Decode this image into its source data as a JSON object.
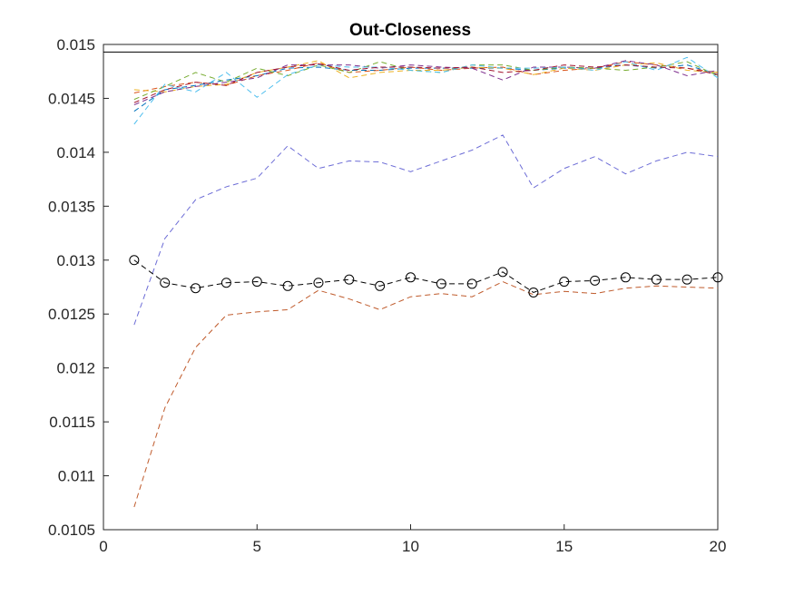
{
  "chart_data": {
    "type": "line",
    "title": "Out-Closeness",
    "xlabel": "",
    "ylabel": "",
    "xlim": [
      0,
      20
    ],
    "ylim": [
      0.0105,
      0.015
    ],
    "xticks": [
      0,
      5,
      10,
      15,
      20
    ],
    "yticks": [
      0.0105,
      0.011,
      0.0115,
      0.012,
      0.0125,
      0.013,
      0.0135,
      0.014,
      0.0145,
      0.015
    ],
    "ytick_labels": [
      "0.0105",
      "0.011",
      "0.0115",
      "0.012",
      "0.0125",
      "0.013",
      "0.0135",
      "0.014",
      "0.0145",
      "0.015"
    ],
    "grid": false,
    "reference_line": {
      "y": 0.01493,
      "color": "#000000"
    },
    "x": [
      1,
      2,
      3,
      4,
      5,
      6,
      7,
      8,
      9,
      10,
      11,
      12,
      13,
      14,
      15,
      16,
      17,
      18,
      19,
      20
    ],
    "series": [
      {
        "color": "#0072BD",
        "values": [
          0.01438,
          0.01458,
          0.01462,
          0.01467,
          0.01471,
          0.01478,
          0.01479,
          0.01476,
          0.01476,
          0.01478,
          0.01478,
          0.01478,
          0.01478,
          0.01476,
          0.01478,
          0.01478,
          0.01481,
          0.01478,
          0.01481,
          0.01472
        ]
      },
      {
        "color": "#D95319",
        "values": [
          0.01455,
          0.01461,
          0.01465,
          0.01462,
          0.01471,
          0.01476,
          0.01483,
          0.01474,
          0.01476,
          0.01479,
          0.01476,
          0.01478,
          0.01479,
          0.01472,
          0.01476,
          0.01478,
          0.01484,
          0.01481,
          0.01478,
          0.01474
        ]
      },
      {
        "color": "#EDB120",
        "values": [
          0.01458,
          0.01456,
          0.01461,
          0.01463,
          0.01474,
          0.01479,
          0.01485,
          0.01469,
          0.01474,
          0.01476,
          0.01476,
          0.01479,
          0.01478,
          0.01472,
          0.01478,
          0.01476,
          0.01481,
          0.01483,
          0.01476,
          0.01474
        ]
      },
      {
        "color": "#7E2F8E",
        "values": [
          0.01444,
          0.01456,
          0.01461,
          0.01465,
          0.01469,
          0.01481,
          0.01481,
          0.01481,
          0.01478,
          0.01481,
          0.01479,
          0.01478,
          0.01467,
          0.01479,
          0.01479,
          0.01478,
          0.01485,
          0.01481,
          0.01471,
          0.01476
        ]
      },
      {
        "color": "#77AC30",
        "values": [
          0.01449,
          0.01461,
          0.01474,
          0.01465,
          0.01478,
          0.01471,
          0.01481,
          0.01474,
          0.01484,
          0.01476,
          0.01474,
          0.01481,
          0.01481,
          0.01476,
          0.01479,
          0.01478,
          0.01476,
          0.01479,
          0.01484,
          0.01471
        ]
      },
      {
        "color": "#4DBEEE",
        "values": [
          0.01426,
          0.01463,
          0.01456,
          0.01474,
          0.01451,
          0.01472,
          0.01481,
          0.01479,
          0.01479,
          0.01476,
          0.01474,
          0.01481,
          0.01478,
          0.01478,
          0.01479,
          0.01476,
          0.01484,
          0.01476,
          0.01488,
          0.01469
        ]
      },
      {
        "color": "#A2142F",
        "values": [
          0.01446,
          0.01458,
          0.01465,
          0.01462,
          0.01474,
          0.01479,
          0.01482,
          0.01476,
          0.01479,
          0.01479,
          0.01478,
          0.01479,
          0.01474,
          0.01476,
          0.01481,
          0.01479,
          0.01481,
          0.01479,
          0.01478,
          0.01472
        ]
      },
      {
        "color": "#6C6CD6",
        "values": [
          0.0124,
          0.0132,
          0.01356,
          0.01368,
          0.01376,
          0.01406,
          0.01385,
          0.01392,
          0.01391,
          0.01382,
          0.01392,
          0.01402,
          0.01416,
          0.01367,
          0.01385,
          0.01396,
          0.0138,
          0.01392,
          0.014,
          0.01396
        ]
      },
      {
        "color": "#BF5A2B",
        "values": [
          0.01071,
          0.01163,
          0.01219,
          0.01249,
          0.01252,
          0.01254,
          0.01272,
          0.01264,
          0.01254,
          0.01266,
          0.01269,
          0.01266,
          0.0128,
          0.01268,
          0.01271,
          0.01269,
          0.01274,
          0.01276,
          0.01275,
          0.01274
        ]
      },
      {
        "color": "#000000",
        "marker": "circle",
        "values": [
          0.013,
          0.01279,
          0.01274,
          0.01279,
          0.0128,
          0.01276,
          0.01279,
          0.01282,
          0.01276,
          0.01284,
          0.01278,
          0.01278,
          0.01289,
          0.0127,
          0.0128,
          0.01281,
          0.01284,
          0.01282,
          0.01282,
          0.01284
        ]
      }
    ]
  }
}
